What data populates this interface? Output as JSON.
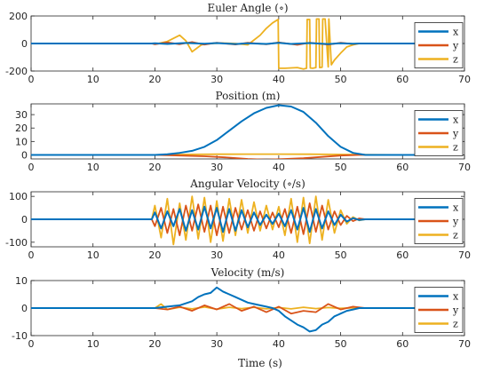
{
  "chart_data": [
    {
      "type": "line",
      "title": "Euler Angle (∘)",
      "xlim": [
        0,
        70
      ],
      "ylim": [
        -200,
        200
      ],
      "xticks": [
        0,
        10,
        20,
        30,
        40,
        50,
        60,
        70
      ],
      "yticks": [
        -200,
        0,
        200
      ],
      "legend": "right",
      "series": [
        {
          "name": "x",
          "color": "#0072BD",
          "x": [
            0,
            19.5,
            20,
            22,
            25,
            28,
            30,
            33,
            35,
            38,
            40,
            42,
            45,
            48,
            50,
            52,
            53,
            62
          ],
          "y": [
            0,
            0,
            2,
            -3,
            4,
            -2,
            3,
            -4,
            2,
            -3,
            5,
            -3,
            3,
            -4,
            2,
            -1,
            0,
            0
          ]
        },
        {
          "name": "y",
          "color": "#D95319",
          "x": [
            0,
            19.5,
            20,
            22,
            24,
            26,
            28,
            30,
            33,
            35,
            38,
            40,
            43,
            45,
            48,
            50,
            52,
            53,
            62
          ],
          "y": [
            0,
            0,
            -6,
            8,
            -5,
            10,
            -8,
            6,
            -7,
            5,
            -6,
            8,
            -10,
            6,
            -8,
            5,
            -3,
            0,
            0
          ]
        },
        {
          "name": "z",
          "color": "#EDB120",
          "x": [
            0,
            20.5,
            22,
            24,
            25,
            26,
            27.5,
            29,
            31,
            33,
            35,
            37,
            38,
            39,
            39.9,
            40,
            41,
            43,
            44,
            44.5,
            44.6,
            45,
            45.1,
            45.5,
            46,
            46.1,
            46.5,
            46.6,
            47,
            47.1,
            47.5,
            48,
            48.1,
            48.5,
            49,
            50,
            51,
            52,
            53,
            62
          ],
          "y": [
            0,
            0,
            15,
            60,
            20,
            -60,
            -10,
            0,
            3,
            0,
            -10,
            60,
            110,
            150,
            175,
            -180,
            -180,
            -175,
            -185,
            -180,
            175,
            175,
            -178,
            -180,
            -175,
            178,
            178,
            -175,
            -172,
            178,
            178,
            -170,
            178,
            -155,
            -120,
            -70,
            -25,
            -10,
            0,
            0
          ]
        }
      ]
    },
    {
      "type": "line",
      "title": "Position (m)",
      "xlim": [
        0,
        70
      ],
      "ylim": [
        -3,
        38
      ],
      "xticks": [
        0,
        10,
        20,
        30,
        40,
        50,
        60,
        70
      ],
      "yticks": [
        0,
        10,
        20,
        30
      ],
      "legend": "right",
      "series": [
        {
          "name": "x",
          "color": "#0072BD",
          "x": [
            0,
            20,
            22,
            24,
            26,
            28,
            30,
            32,
            34,
            36,
            38,
            40,
            42,
            44,
            46,
            48,
            50,
            52,
            54,
            62
          ],
          "y": [
            0,
            0,
            0.5,
            1.5,
            3,
            6,
            11,
            18,
            25,
            31,
            35,
            37,
            36,
            32,
            24,
            14,
            6,
            1.5,
            0,
            0
          ]
        },
        {
          "name": "y",
          "color": "#D95319",
          "x": [
            0,
            20,
            24,
            28,
            32,
            35,
            38,
            41,
            44,
            47,
            50,
            53,
            62
          ],
          "y": [
            0,
            0,
            -0.5,
            -1,
            -2,
            -3,
            -3.5,
            -3,
            -2.5,
            -1.5,
            -0.5,
            0,
            0
          ]
        },
        {
          "name": "z",
          "color": "#EDB120",
          "x": [
            0,
            20,
            25,
            30,
            35,
            40,
            45,
            50,
            55,
            62
          ],
          "y": [
            0,
            0,
            0.3,
            0.5,
            0.6,
            0.6,
            0.5,
            0.3,
            0.1,
            0
          ]
        }
      ]
    },
    {
      "type": "line",
      "title": "Angular Velocity (∘/s)",
      "xlim": [
        0,
        70
      ],
      "ylim": [
        -120,
        120
      ],
      "xticks": [
        0,
        10,
        20,
        30,
        40,
        50,
        60,
        70
      ],
      "yticks": [
        -100,
        0,
        100
      ],
      "legend": "right",
      "series": [
        {
          "name": "x",
          "color": "#0072BD",
          "x": [
            0,
            19.5,
            20,
            21,
            22,
            23,
            24,
            25,
            26,
            27,
            28,
            29,
            30,
            31,
            32,
            33,
            34,
            35,
            36,
            37,
            38,
            39,
            40,
            41,
            42,
            43,
            44,
            45,
            46,
            47,
            48,
            49,
            50,
            51,
            52,
            53,
            54,
            62
          ],
          "y": [
            0,
            0,
            30,
            -40,
            35,
            -30,
            45,
            -50,
            40,
            -45,
            55,
            -40,
            50,
            -55,
            45,
            -50,
            40,
            -35,
            30,
            -25,
            20,
            -20,
            25,
            -30,
            40,
            -45,
            50,
            -55,
            45,
            -40,
            35,
            -25,
            20,
            -10,
            5,
            -3,
            0,
            0
          ]
        },
        {
          "name": "y",
          "color": "#D95319",
          "x": [
            0,
            19.5,
            20,
            21,
            22,
            23,
            24,
            25,
            26,
            27,
            28,
            29,
            30,
            31,
            32,
            33,
            34,
            35,
            36,
            37,
            38,
            39,
            40,
            41,
            42,
            43,
            44,
            45,
            46,
            47,
            48,
            49,
            50,
            51,
            52,
            53,
            54,
            62
          ],
          "y": [
            0,
            0,
            -30,
            50,
            -60,
            45,
            -70,
            60,
            -50,
            65,
            -55,
            60,
            -70,
            55,
            -60,
            50,
            -45,
            40,
            -50,
            35,
            -40,
            30,
            -35,
            45,
            -60,
            55,
            -65,
            70,
            -55,
            60,
            -45,
            35,
            -25,
            15,
            -8,
            4,
            0,
            0
          ]
        },
        {
          "name": "z",
          "color": "#EDB120",
          "x": [
            0,
            19.5,
            20,
            21,
            22,
            23,
            24,
            25,
            26,
            27,
            28,
            29,
            30,
            31,
            32,
            33,
            34,
            35,
            36,
            37,
            38,
            39,
            40,
            41,
            42,
            43,
            44,
            45,
            46,
            47,
            48,
            49,
            50,
            51,
            52,
            53,
            54,
            62
          ],
          "y": [
            0,
            0,
            60,
            -80,
            90,
            -110,
            70,
            -90,
            100,
            -85,
            95,
            -100,
            80,
            -95,
            90,
            -70,
            85,
            -60,
            75,
            -50,
            60,
            -45,
            55,
            -70,
            90,
            -100,
            95,
            -105,
            100,
            -90,
            85,
            -60,
            40,
            -20,
            10,
            -5,
            0,
            0
          ]
        }
      ]
    },
    {
      "type": "line",
      "title": "Velocity (m/s)",
      "xlabel": "Time (s)",
      "xlim": [
        0,
        70
      ],
      "ylim": [
        -10,
        10
      ],
      "xticks": [
        0,
        10,
        20,
        30,
        40,
        50,
        60,
        70
      ],
      "yticks": [
        -10,
        0,
        10
      ],
      "legend": "right",
      "series": [
        {
          "name": "x",
          "color": "#0072BD",
          "x": [
            0,
            20,
            22,
            24,
            26,
            27,
            28,
            29,
            30,
            31,
            32,
            33,
            34,
            35,
            36,
            37,
            38,
            39,
            40,
            41,
            42,
            43,
            44,
            45,
            46,
            47,
            48,
            49,
            50,
            51,
            52,
            53,
            62
          ],
          "y": [
            0,
            0,
            0.5,
            1,
            2.5,
            4,
            5,
            5.5,
            7.5,
            6,
            5,
            4,
            3,
            2,
            1.5,
            1,
            0.5,
            0,
            -1,
            -3,
            -4.5,
            -6,
            -7,
            -8.5,
            -8,
            -6,
            -5,
            -3,
            -2,
            -1,
            -0.5,
            0,
            0
          ]
        },
        {
          "name": "y",
          "color": "#D95319",
          "x": [
            0,
            20,
            22,
            24,
            26,
            28,
            30,
            32,
            34,
            36,
            38,
            40,
            42,
            44,
            46,
            48,
            50,
            52,
            54,
            62
          ],
          "y": [
            0,
            0,
            -0.5,
            0.5,
            -1,
            1,
            -0.5,
            1.5,
            -1,
            0.5,
            -1.5,
            0.5,
            -2,
            -1,
            -1.5,
            1.5,
            -0.5,
            0.5,
            0,
            0
          ]
        },
        {
          "name": "z",
          "color": "#EDB120",
          "x": [
            0,
            20,
            21,
            22,
            24,
            26,
            28,
            30,
            32,
            34,
            36,
            38,
            40,
            42,
            44,
            46,
            48,
            50,
            52,
            54,
            62
          ],
          "y": [
            0,
            0,
            1.5,
            -0.5,
            0.3,
            -0.3,
            0.4,
            -0.4,
            0.3,
            -0.2,
            0.3,
            -0.3,
            0.2,
            -0.3,
            0.3,
            -0.2,
            0.2,
            -0.1,
            0.1,
            0,
            0
          ]
        }
      ]
    }
  ]
}
